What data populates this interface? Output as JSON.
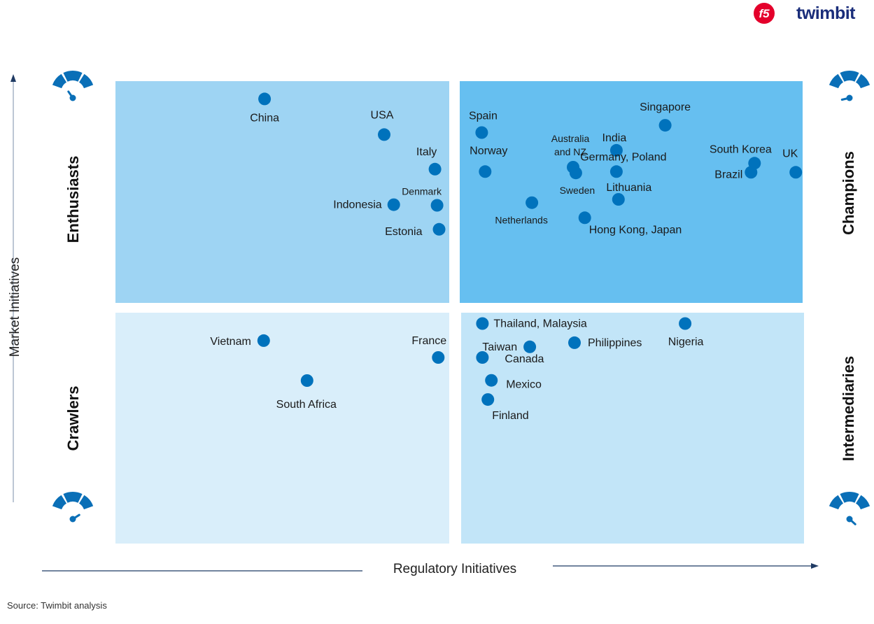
{
  "brand": {
    "logo1": "f5",
    "logo2": "twimbit"
  },
  "source": "Source: Twimbit analysis",
  "colors": {
    "champions_bg": "#66bff0",
    "enthusiasts_bg": "#9ed4f3",
    "intermediaries_bg": "#c2e5f8",
    "crawlers_bg": "#d9eefa",
    "dot": "#0072bc",
    "gauge": "#0a6fb7"
  },
  "chart_data": {
    "type": "scatter",
    "title": "",
    "xlabel": "Regulatory Initiatives",
    "ylabel": "Market Initiatives",
    "xlim": [
      0,
      100
    ],
    "ylim": [
      0,
      100
    ],
    "grid": false,
    "quadrants": {
      "top_left": "Enthusiasts",
      "top_right": "Champions",
      "bottom_left": "Crawlers",
      "bottom_right": "Intermediaries"
    },
    "points": [
      {
        "label": "China",
        "x": 21.7,
        "y": 92.0,
        "lx": 0,
        "ly": 32,
        "a": "middle"
      },
      {
        "label": "USA",
        "x": 39.1,
        "y": 75.9,
        "lx": -3,
        "ly": -23,
        "a": "middle"
      },
      {
        "label": "Italy",
        "x": 46.5,
        "y": 60.3,
        "lx": -12,
        "ly": -20,
        "a": "middle"
      },
      {
        "label": "Denmark",
        "x": 46.8,
        "y": 44.0,
        "lx": -22,
        "ly": -15,
        "a": "middle",
        "small": true
      },
      {
        "label": "Indonesia",
        "x": 40.5,
        "y": 44.3,
        "lx": -17,
        "ly": 5,
        "a": "end"
      },
      {
        "label": "Estonia",
        "x": 47.1,
        "y": 33.2,
        "lx": -24,
        "ly": 8,
        "a": "end"
      },
      {
        "label": "Spain",
        "x": 53.3,
        "y": 76.8,
        "lx": 2,
        "ly": -19,
        "a": "middle"
      },
      {
        "label": "Norway",
        "x": 53.8,
        "y": 59.2,
        "lx": 5,
        "ly": -25,
        "a": "middle"
      },
      {
        "label": "Netherlands",
        "x": 60.6,
        "y": 45.2,
        "lx": -15,
        "ly": 30,
        "a": "middle",
        "small": true
      },
      {
        "label": "Australia and NZ",
        "x": 66.6,
        "y": 61.2,
        "lx": -4,
        "ly": -36,
        "a": "middle",
        "small": true,
        "wrap": [
          "Australia",
          "and NZ"
        ]
      },
      {
        "label": "Sweden",
        "x": 67.0,
        "y": 58.6,
        "lx": 2,
        "ly": 30,
        "a": "middle",
        "small": true
      },
      {
        "label": "India",
        "x": 72.9,
        "y": 68.8,
        "lx": -3,
        "ly": -13,
        "a": "middle"
      },
      {
        "label": "Germany, Poland",
        "x": 72.9,
        "y": 59.2,
        "lx": 10,
        "ly": -16,
        "a": "middle"
      },
      {
        "label": "Lithuania",
        "x": 73.2,
        "y": 46.7,
        "lx": 15,
        "ly": -12,
        "a": "middle"
      },
      {
        "label": "Hong Kong, Japan",
        "x": 68.3,
        "y": 38.4,
        "lx": 6,
        "ly": 22,
        "a": "start"
      },
      {
        "label": "Singapore",
        "x": 80.0,
        "y": 80.1,
        "lx": 0,
        "ly": -21,
        "a": "middle"
      },
      {
        "label": "South Korea",
        "x": 93.0,
        "y": 63.0,
        "lx": -20,
        "ly": -15,
        "a": "middle"
      },
      {
        "label": "Brazil",
        "x": 92.5,
        "y": 58.9,
        "lx": -12,
        "ly": 8,
        "a": "end"
      },
      {
        "label": "UK",
        "x": 99.0,
        "y": 58.9,
        "lx": -8,
        "ly": -22,
        "a": "middle"
      },
      {
        "label": "Thailand, Malaysia",
        "x": 53.4,
        "y": 95.3,
        "lx": 16,
        "ly": 5,
        "a": "start"
      },
      {
        "label": "Taiwan",
        "x": 60.3,
        "y": 85.2,
        "lx": -18,
        "ly": 5,
        "a": "end"
      },
      {
        "label": "Canada",
        "x": 53.4,
        "y": 80.6,
        "lx": 32,
        "ly": 7,
        "a": "start"
      },
      {
        "label": "Philippines",
        "x": 66.8,
        "y": 87.0,
        "lx": 19,
        "ly": 5,
        "a": "start"
      },
      {
        "label": "Nigeria",
        "x": 82.9,
        "y": 95.3,
        "lx": 1,
        "ly": 31,
        "a": "middle"
      },
      {
        "label": "Mexico",
        "x": 54.7,
        "y": 70.7,
        "lx": 21,
        "ly": 11,
        "a": "start"
      },
      {
        "label": "Finland",
        "x": 54.2,
        "y": 62.4,
        "lx": 6,
        "ly": 28,
        "a": "start"
      },
      {
        "label": "Vietnam",
        "x": 44.4,
        "y": 87.9,
        "lx": -18,
        "ly": 6,
        "a": "end"
      },
      {
        "label": "France",
        "x": 96.7,
        "y": 80.6,
        "lx": -13,
        "ly": -19,
        "a": "middle"
      },
      {
        "label": "South Africa",
        "x": 57.4,
        "y": 70.6,
        "lx": -1,
        "ly": 39,
        "a": "middle"
      }
    ]
  }
}
